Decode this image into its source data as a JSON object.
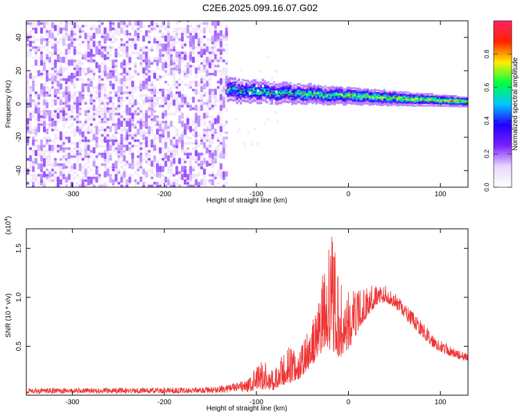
{
  "figure": {
    "title": "C2E6.2025.099.16.07.G02"
  },
  "chart_data": [
    {
      "type": "heatmap",
      "xlabel": "Height of straight line (km)",
      "ylabel": "Frequency (Hz)",
      "xlim": [
        -350,
        130
      ],
      "ylim": [
        -50,
        50
      ],
      "xticks": [
        -300,
        -200,
        -100,
        0,
        100
      ],
      "yticks": [
        -40,
        -20,
        0,
        20,
        40
      ],
      "grid": false,
      "colorbar": {
        "label": "Normalized spectral amplitude",
        "range": [
          0.0,
          1.0
        ],
        "ticks": [
          "0.0",
          "0.2",
          "0.4",
          "0.6",
          "0.8"
        ],
        "colors": [
          "#ffffff",
          "#e8d8fb",
          "#7b1fff",
          "#2200ff",
          "#00c8ff",
          "#00ff44",
          "#ffee00",
          "#ff2200",
          "#ff2266"
        ]
      },
      "regions": [
        {
          "x_range": [
            -350,
            -132
          ],
          "y_range": [
            -50,
            50
          ],
          "level": 0.15
        },
        {
          "x_range": [
            -132,
            130
          ],
          "y_center_start": 8,
          "y_center_end": 1,
          "half_width_start": 6,
          "half_width_end": 2,
          "peak_level": 0.9
        }
      ]
    },
    {
      "type": "line",
      "xlabel": "Height of straight line (km)",
      "ylabel": "SNR (10 * v/v)",
      "y_multiplier_label": "(x10^4)",
      "xlim": [
        -350,
        130
      ],
      "ylim": [
        0,
        17000
      ],
      "xticks": [
        -300,
        -200,
        -100,
        0,
        100
      ],
      "yticks": [
        0.5,
        1.0,
        1.5
      ],
      "ytick_labels": [
        "0.5",
        "1.0",
        "1.5"
      ],
      "color": "#ee3333",
      "envelope": {
        "x": [
          -350,
          -150,
          -110,
          -95,
          -80,
          -65,
          -55,
          -45,
          -35,
          -25,
          -18,
          -10,
          0,
          10,
          20,
          30,
          40,
          50,
          60,
          75,
          90,
          110,
          130
        ],
        "min": [
          150,
          200,
          300,
          600,
          500,
          1200,
          1500,
          2500,
          3500,
          5000,
          4500,
          3800,
          4500,
          6500,
          8000,
          9200,
          9500,
          9000,
          8000,
          6500,
          5000,
          4000,
          3400
        ],
        "max": [
          700,
          800,
          1500,
          3700,
          2600,
          5400,
          4200,
          6400,
          8500,
          14000,
          17000,
          11500,
          10800,
          10700,
          11000,
          11500,
          11300,
          10500,
          9500,
          8000,
          6500,
          5000,
          4200
        ]
      }
    }
  ]
}
